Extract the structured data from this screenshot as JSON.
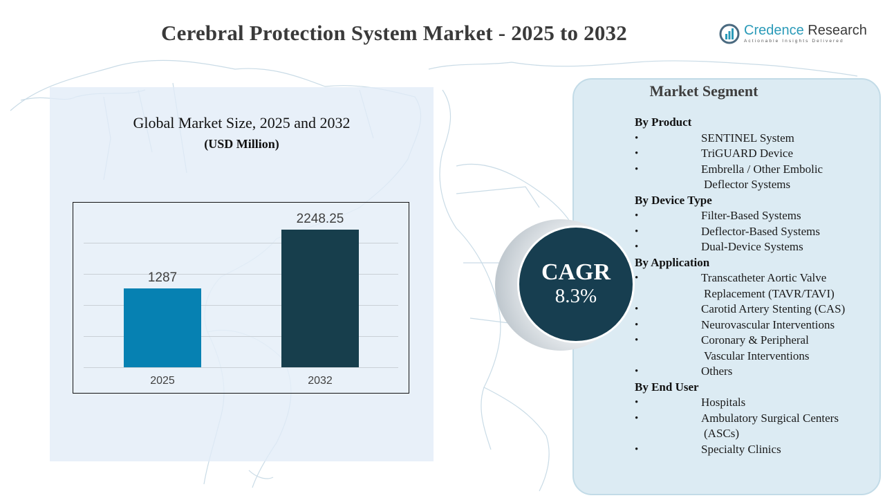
{
  "header": {
    "title": "Cerebral Protection System Market - 2025 to 2032"
  },
  "logo": {
    "name_part1": "Credence",
    "name_part2": " Research",
    "tagline": "Actionable Insights Delivered",
    "accent_color": "#2a9ab8"
  },
  "chart_panel": {
    "title": "Global Market Size, 2025 and 2032",
    "subtitle": "(USD Million)"
  },
  "chart_data": {
    "type": "bar",
    "title": "Global Market Size, 2025 and 2032",
    "subtitle": "(USD Million)",
    "categories": [
      "2025",
      "2032"
    ],
    "values": [
      1287,
      2248.25
    ],
    "value_labels": [
      "1287",
      "2248.25"
    ],
    "colors": [
      "#0681b2",
      "#173e4c"
    ],
    "xlabel": "",
    "ylabel": "USD Million",
    "ylim": [
      0,
      2500
    ],
    "grid": true,
    "legend": "none"
  },
  "cagr": {
    "label": "CAGR",
    "value": "8.3%"
  },
  "segments": {
    "heading": "Market Segment",
    "groups": [
      {
        "title": "By Product",
        "items": [
          {
            "label": "SENTINEL System"
          },
          {
            "label": "TriGUARD Device"
          },
          {
            "label": "Embrella / Other Embolic",
            "cont": "Deflector Systems"
          }
        ]
      },
      {
        "title": "By Device Type",
        "items": [
          {
            "label": "Filter-Based Systems"
          },
          {
            "label": "Deflector-Based Systems"
          },
          {
            "label": "Dual-Device Systems"
          }
        ]
      },
      {
        "title": "By Application",
        "items": [
          {
            "label": "Transcatheter Aortic Valve",
            "cont": "Replacement (TAVR/TAVI)"
          },
          {
            "label": "Carotid Artery Stenting (CAS)"
          },
          {
            "label": "Neurovascular Interventions"
          },
          {
            "label": "Coronary & Peripheral",
            "cont": "Vascular Interventions"
          },
          {
            "label": "Others"
          }
        ]
      },
      {
        "title": "By End User",
        "items": [
          {
            "label": "Hospitals"
          },
          {
            "label": "Ambulatory Surgical Centers",
            "cont": "(ASCs)"
          },
          {
            "label": "Specialty Clinics"
          }
        ]
      }
    ]
  }
}
